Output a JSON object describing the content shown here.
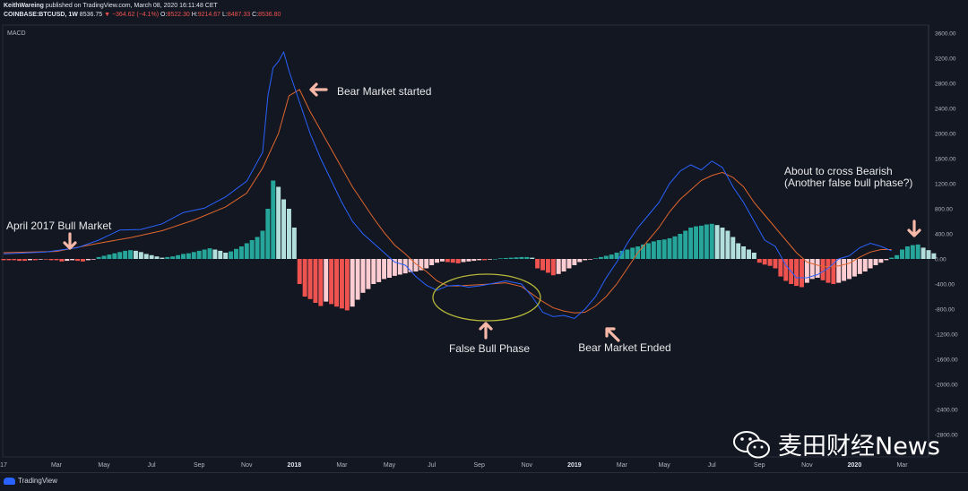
{
  "header": {
    "line1_author": "KeithWareing",
    "line1_rest": "published on TradingView.com, March 08, 2020 16:11:48 CET",
    "symbol": "COINBASE:BTCUSD, 1W",
    "price": "8536.75",
    "change": "−364.62 (−4.1%)",
    "open_label": "O:",
    "open": "8522.30",
    "high_label": "H:",
    "high": "9214.67",
    "low_label": "L:",
    "low": "8487.33",
    "close_label": "C:",
    "close": "8536.80"
  },
  "indicator_label": "MACD",
  "footer": {
    "logo_text": "TradingView"
  },
  "watermark": {
    "text": "麦田财经News"
  },
  "colors": {
    "background": "#131722",
    "macd_line": "#2962ff",
    "signal_line": "#e0662d",
    "hist_pos_strong": "#26a69a",
    "hist_pos_weak": "#b2dfdb",
    "hist_neg_strong": "#ef5350",
    "hist_neg_weak": "#ffcdd2",
    "annotation_arrow": "#f7b8a8",
    "ellipse": "#b5b83a"
  },
  "chart_data": {
    "type": "line",
    "title": "MACD",
    "ylim": [
      -3000,
      3700
    ],
    "y_ticks": [
      3600,
      3200,
      2800,
      2400,
      2000,
      1600,
      1200,
      800,
      400,
      0,
      -400,
      -800,
      -1200,
      -1600,
      -2000,
      -2400,
      -2800
    ],
    "y_tick_labels": [
      "3600.00",
      "3200.00",
      "2800.00",
      "2400.00",
      "2000.00",
      "1600.00",
      "1200.00",
      "800.00",
      "400.00",
      "0.00",
      "-400.00",
      "-800.00",
      "-1200.00",
      "-1600.00",
      "-2000.00",
      "-2400.00",
      "-2800.00"
    ],
    "x_ticks": [
      {
        "label": "17",
        "week": 0
      },
      {
        "label": "Mar",
        "week": 10
      },
      {
        "label": "May",
        "week": 19
      },
      {
        "label": "Jul",
        "week": 28
      },
      {
        "label": "Sep",
        "week": 37
      },
      {
        "label": "Nov",
        "week": 46
      },
      {
        "label": "2018",
        "week": 55
      },
      {
        "label": "Mar",
        "week": 64
      },
      {
        "label": "May",
        "week": 73
      },
      {
        "label": "Jul",
        "week": 81
      },
      {
        "label": "Sep",
        "week": 90
      },
      {
        "label": "Nov",
        "week": 99
      },
      {
        "label": "2019",
        "week": 108
      },
      {
        "label": "Mar",
        "week": 117
      },
      {
        "label": "May",
        "week": 125
      },
      {
        "label": "Jul",
        "week": 134
      },
      {
        "label": "Sep",
        "week": 143
      },
      {
        "label": "Nov",
        "week": 152
      },
      {
        "label": "2020",
        "week": 161
      },
      {
        "label": "Mar",
        "week": 170
      }
    ],
    "macd": [
      [
        0,
        80
      ],
      [
        8,
        110
      ],
      [
        14,
        180
      ],
      [
        18,
        300
      ],
      [
        22,
        460
      ],
      [
        26,
        470
      ],
      [
        30,
        560
      ],
      [
        34,
        740
      ],
      [
        38,
        810
      ],
      [
        42,
        990
      ],
      [
        46,
        1240
      ],
      [
        49,
        1700
      ],
      [
        50,
        2600
      ],
      [
        51,
        3050
      ],
      [
        52,
        3150
      ],
      [
        53,
        3300
      ],
      [
        54,
        3000
      ],
      [
        56,
        2500
      ],
      [
        58,
        2000
      ],
      [
        60,
        1600
      ],
      [
        62,
        1250
      ],
      [
        64,
        900
      ],
      [
        66,
        600
      ],
      [
        68,
        400
      ],
      [
        70,
        250
      ],
      [
        72,
        100
      ],
      [
        74,
        -50
      ],
      [
        76,
        -100
      ],
      [
        78,
        -280
      ],
      [
        80,
        -420
      ],
      [
        82,
        -500
      ],
      [
        84,
        -430
      ],
      [
        86,
        -420
      ],
      [
        88,
        -450
      ],
      [
        90,
        -430
      ],
      [
        92,
        -400
      ],
      [
        95,
        -350
      ],
      [
        98,
        -400
      ],
      [
        100,
        -600
      ],
      [
        102,
        -850
      ],
      [
        104,
        -920
      ],
      [
        106,
        -900
      ],
      [
        108,
        -950
      ],
      [
        110,
        -800
      ],
      [
        112,
        -600
      ],
      [
        114,
        -300
      ],
      [
        116,
        -50
      ],
      [
        118,
        250
      ],
      [
        120,
        500
      ],
      [
        122,
        700
      ],
      [
        124,
        900
      ],
      [
        126,
        1200
      ],
      [
        128,
        1400
      ],
      [
        130,
        1500
      ],
      [
        132,
        1420
      ],
      [
        134,
        1560
      ],
      [
        136,
        1460
      ],
      [
        138,
        1150
      ],
      [
        140,
        900
      ],
      [
        142,
        600
      ],
      [
        144,
        300
      ],
      [
        146,
        200
      ],
      [
        148,
        -100
      ],
      [
        150,
        -300
      ],
      [
        152,
        -300
      ],
      [
        154,
        -250
      ],
      [
        156,
        -150
      ],
      [
        158,
        0
      ],
      [
        160,
        50
      ],
      [
        162,
        180
      ],
      [
        164,
        250
      ],
      [
        166,
        200
      ],
      [
        168,
        130
      ]
    ],
    "signal": [
      [
        0,
        100
      ],
      [
        10,
        120
      ],
      [
        18,
        250
      ],
      [
        24,
        340
      ],
      [
        30,
        450
      ],
      [
        36,
        620
      ],
      [
        42,
        830
      ],
      [
        46,
        1050
      ],
      [
        49,
        1450
      ],
      [
        52,
        2000
      ],
      [
        54,
        2600
      ],
      [
        56,
        2700
      ],
      [
        58,
        2350
      ],
      [
        60,
        2050
      ],
      [
        62,
        1750
      ],
      [
        64,
        1450
      ],
      [
        66,
        1150
      ],
      [
        68,
        900
      ],
      [
        70,
        650
      ],
      [
        72,
        420
      ],
      [
        74,
        220
      ],
      [
        76,
        80
      ],
      [
        78,
        -80
      ],
      [
        80,
        -200
      ],
      [
        82,
        -350
      ],
      [
        84,
        -430
      ],
      [
        86,
        -430
      ],
      [
        88,
        -420
      ],
      [
        90,
        -410
      ],
      [
        92,
        -400
      ],
      [
        95,
        -380
      ],
      [
        98,
        -440
      ],
      [
        100,
        -560
      ],
      [
        102,
        -680
      ],
      [
        104,
        -780
      ],
      [
        106,
        -830
      ],
      [
        108,
        -860
      ],
      [
        110,
        -850
      ],
      [
        112,
        -750
      ],
      [
        114,
        -600
      ],
      [
        116,
        -400
      ],
      [
        118,
        -150
      ],
      [
        120,
        100
      ],
      [
        122,
        300
      ],
      [
        124,
        500
      ],
      [
        126,
        750
      ],
      [
        128,
        950
      ],
      [
        130,
        1100
      ],
      [
        132,
        1250
      ],
      [
        134,
        1330
      ],
      [
        136,
        1380
      ],
      [
        138,
        1300
      ],
      [
        140,
        1150
      ],
      [
        142,
        900
      ],
      [
        144,
        700
      ],
      [
        146,
        500
      ],
      [
        148,
        300
      ],
      [
        150,
        100
      ],
      [
        152,
        -50
      ],
      [
        154,
        -100
      ],
      [
        156,
        -130
      ],
      [
        158,
        -110
      ],
      [
        160,
        -70
      ],
      [
        162,
        30
      ],
      [
        164,
        110
      ],
      [
        166,
        150
      ],
      [
        168,
        150
      ]
    ],
    "histogram": [
      -20,
      -20,
      -20,
      -30,
      -30,
      -20,
      -20,
      -10,
      -10,
      -20,
      -20,
      -40,
      -30,
      -20,
      -30,
      -40,
      -20,
      -10,
      30,
      50,
      70,
      90,
      110,
      130,
      140,
      130,
      110,
      80,
      60,
      40,
      20,
      30,
      40,
      60,
      80,
      90,
      110,
      130,
      150,
      170,
      150,
      130,
      100,
      120,
      160,
      200,
      250,
      300,
      350,
      450,
      800,
      1250,
      1150,
      950,
      800,
      500,
      -400,
      -600,
      -640,
      -700,
      -750,
      -680,
      -720,
      -760,
      -790,
      -820,
      -760,
      -650,
      -540,
      -480,
      -400,
      -370,
      -320,
      -300,
      -270,
      -250,
      -230,
      -210,
      -200,
      -180,
      -150,
      -100,
      -60,
      -40,
      -50,
      -60,
      -70,
      -50,
      -40,
      -30,
      -20,
      -20,
      -10,
      0,
      10,
      15,
      20,
      25,
      30,
      30,
      20,
      -150,
      -180,
      -220,
      -260,
      -240,
      -200,
      -150,
      -100,
      -50,
      -20,
      -10,
      10,
      30,
      50,
      70,
      100,
      130,
      150,
      180,
      200,
      230,
      250,
      280,
      300,
      310,
      330,
      360,
      400,
      450,
      500,
      520,
      530,
      550,
      560,
      540,
      500,
      450,
      350,
      250,
      200,
      150,
      100,
      -60,
      -90,
      -110,
      -150,
      -280,
      -350,
      -400,
      -430,
      -450,
      -380,
      -320,
      -300,
      -340,
      -380,
      -400,
      -380,
      -350,
      -320,
      -280,
      -240,
      -200,
      -150,
      -100,
      -60,
      -20,
      20,
      60,
      150,
      200,
      220,
      230,
      180,
      140,
      90
    ],
    "annotations": [
      {
        "text": "April 2017 Bull Market",
        "week": 12,
        "value": 230
      },
      {
        "text": "Bear Market started",
        "week": 57,
        "value": 2700
      },
      {
        "text": "False Bull Phase",
        "week": 93,
        "value": -1200
      },
      {
        "text": "Bear Market Ended",
        "week": 115,
        "value": -1200
      },
      {
        "text": "About to cross Bearish",
        "week": 166,
        "value": 1320
      },
      {
        "text": "(Another false bull phase?)",
        "week": 166,
        "value": 1140
      }
    ]
  }
}
